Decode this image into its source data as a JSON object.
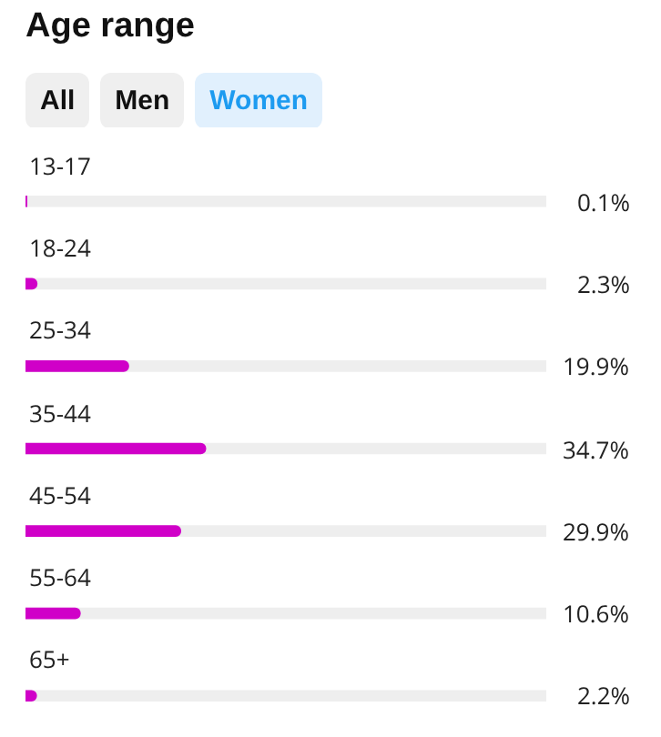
{
  "chart_data": {
    "type": "bar",
    "orientation": "horizontal",
    "title": "Age range",
    "annotations": [
      "All",
      "Men",
      "Women"
    ],
    "categories": [
      "13-17",
      "18-24",
      "25-34",
      "35-44",
      "45-54",
      "55-64",
      "65+"
    ],
    "values": [
      0.1,
      2.3,
      19.9,
      34.7,
      29.9,
      10.6,
      2.2
    ],
    "value_labels": [
      "0.1%",
      "2.3%",
      "19.9%",
      "34.7%",
      "29.9%",
      "10.6%",
      "2.2%"
    ],
    "color": "#d000c8",
    "xlim": [
      0,
      100
    ],
    "tick_labels": "y"
  }
}
